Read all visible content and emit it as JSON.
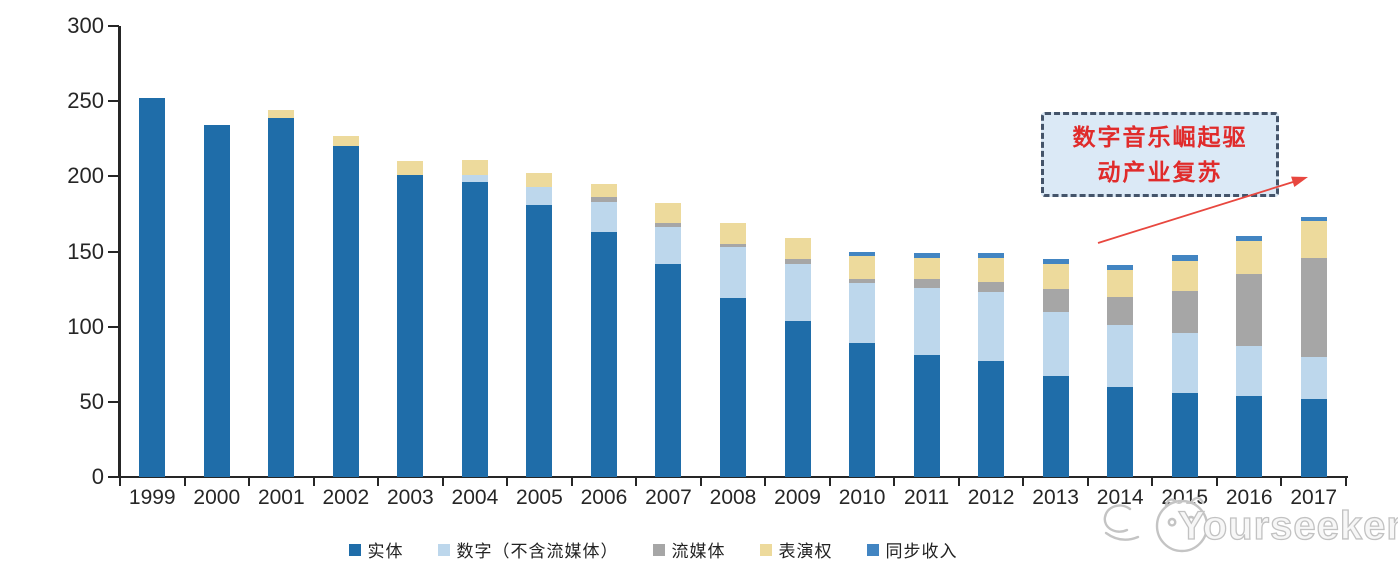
{
  "chart_data": {
    "type": "bar",
    "stacked": true,
    "title": "",
    "xlabel": "",
    "ylabel": "",
    "unit_note": "values read from axis, 0-300 scale",
    "ylim": [
      0,
      300
    ],
    "yticks": [
      300,
      250,
      200,
      150,
      100,
      50,
      0
    ],
    "grid": false,
    "legend_position": "bottom",
    "categories": [
      "1999",
      "2000",
      "2001",
      "2002",
      "2003",
      "2004",
      "2005",
      "2006",
      "2007",
      "2008",
      "2009",
      "2010",
      "2011",
      "2012",
      "2013",
      "2014",
      "2015",
      "2016",
      "2017"
    ],
    "series": [
      {
        "name": "实体",
        "color": "#1F6DA9",
        "values": [
          252,
          234,
          239,
          220,
          201,
          196,
          181,
          163,
          142,
          119,
          104,
          89,
          81,
          77,
          67,
          60,
          56,
          54,
          52
        ]
      },
      {
        "name": "数字（不含流媒体）",
        "color": "#BDD7EC",
        "values": [
          0,
          0,
          0,
          0,
          0,
          5,
          12,
          20,
          24,
          34,
          38,
          40,
          45,
          46,
          43,
          41,
          40,
          33,
          28
        ]
      },
      {
        "name": "流媒体",
        "color": "#A6A6A6",
        "values": [
          0,
          0,
          0,
          0,
          0,
          0,
          0,
          3,
          3,
          2,
          3,
          3,
          6,
          7,
          15,
          19,
          28,
          48,
          66
        ]
      },
      {
        "name": "表演权",
        "color": "#EDDA9C",
        "values": [
          0,
          0,
          5,
          7,
          9,
          10,
          9,
          9,
          13,
          14,
          14,
          15,
          14,
          16,
          17,
          18,
          20,
          22,
          24
        ]
      },
      {
        "name": "同步收入",
        "color": "#4285C2",
        "values": [
          0,
          0,
          0,
          0,
          0,
          0,
          0,
          0,
          0,
          0,
          0,
          3,
          3,
          3,
          3,
          3,
          4,
          3,
          3
        ]
      }
    ],
    "totals": [
      252,
      234,
      244,
      227,
      210,
      211,
      202,
      195,
      182,
      169,
      159,
      150,
      149,
      149,
      145,
      141,
      148,
      160,
      173
    ]
  },
  "annotation": {
    "line1": "数字音乐崛起驱",
    "line2": "动产业复苏",
    "text_color": "#E02B2B",
    "box_fill": "#DBE9F6",
    "box_border": "#44546A",
    "arrow_color": "#E8473F"
  },
  "watermark": {
    "text": "Yourseeker",
    "color": "#C2C2C2",
    "logo": "cat-doodle-icon"
  },
  "axis": {
    "color": "#262626"
  }
}
